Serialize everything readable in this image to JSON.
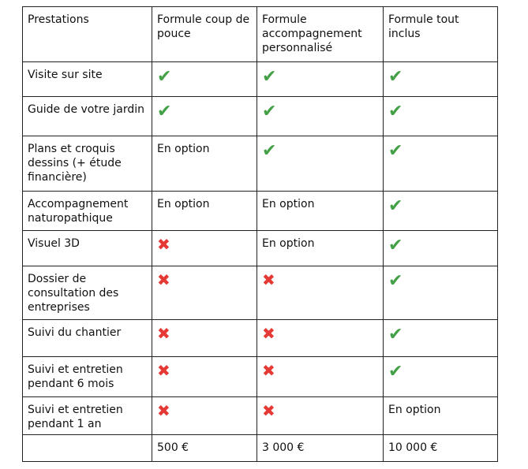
{
  "table": {
    "header": [
      "Prestations",
      "Formule coup de pouce",
      "Formule accompagnement personnalisé",
      "Formule tout inclus"
    ],
    "rows": [
      [
        "Visite sur site",
        "✔",
        "✔",
        "✔"
      ],
      [
        "Guide de votre jardin",
        "✔",
        "✔",
        "✔"
      ],
      [
        "Plans et croquis dessins (+ étude financière)",
        "En option",
        "✔",
        "✔"
      ],
      [
        "Accompagnement naturopathique",
        "En option",
        "En option",
        "✔"
      ],
      [
        "Visuel 3D",
        "✖",
        "En option",
        "✔"
      ],
      [
        "Dossier de consultation des entreprises",
        "✖",
        "✖",
        "✔"
      ],
      [
        "Suivi du chantier",
        "✖",
        "✖",
        "✔"
      ],
      [
        "Suivi et entretien pendant 6 mois",
        "✖",
        "✖",
        "✔"
      ],
      [
        "Suivi et entretien pendant 1 an",
        "✖",
        "✖",
        "En option"
      ],
      [
        null,
        "500 €",
        "3 000 €",
        "10 000 €"
      ]
    ]
  }
}
